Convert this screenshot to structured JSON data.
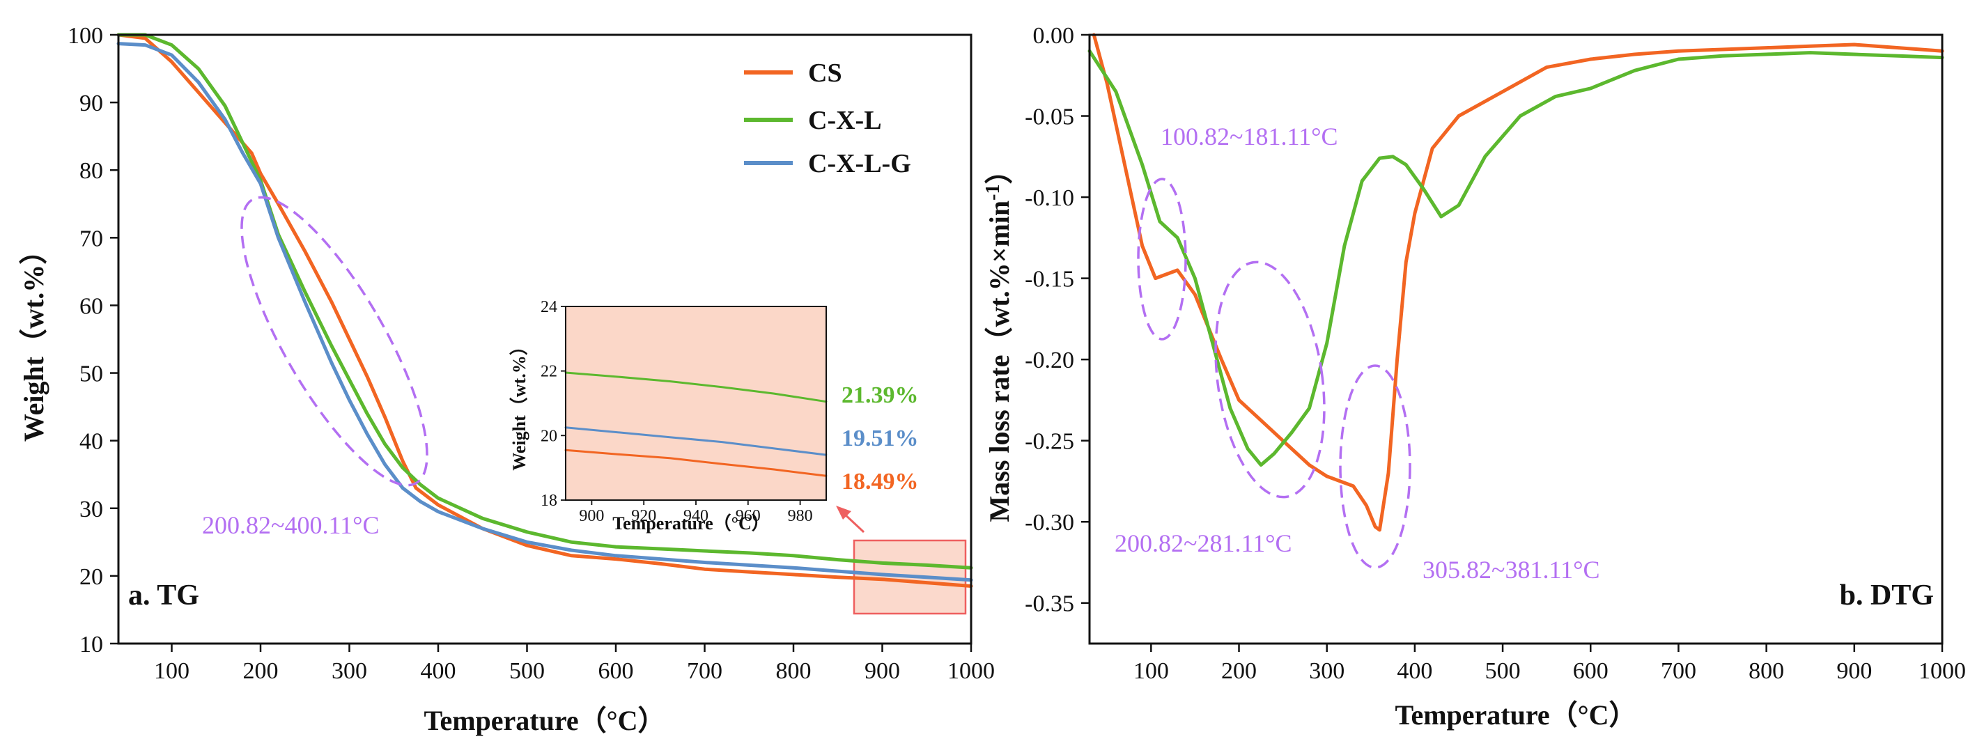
{
  "colors": {
    "CS": "#f26522",
    "C-X-L": "#5cb82e",
    "C-X-L-G": "#5b8ec9",
    "annotation": "#b36ff2",
    "highlight_fill": "#f9c9b6",
    "highlight_stroke": "#ee5f5f"
  },
  "chart_data": [
    {
      "type": "line",
      "panel_label": "a. TG",
      "xlabel": "Temperature（°C）",
      "ylabel": "Weight（wt.%）",
      "xlim": [
        40,
        1000
      ],
      "ylim": [
        10,
        100
      ],
      "xticks": [
        "100",
        "200",
        "300",
        "400",
        "500",
        "600",
        "700",
        "800",
        "900",
        "1000"
      ],
      "xtick_values": [
        100,
        200,
        300,
        400,
        500,
        600,
        700,
        800,
        900,
        1000
      ],
      "yticks": [
        "10",
        "20",
        "30",
        "40",
        "50",
        "60",
        "70",
        "80",
        "90",
        "100"
      ],
      "ytick_values": [
        10,
        20,
        30,
        40,
        50,
        60,
        70,
        80,
        90,
        100
      ],
      "legend": [
        "CS",
        "C-X-L",
        "C-X-L-G"
      ],
      "legend_position": "top-right",
      "series": [
        {
          "name": "CS",
          "x": [
            40,
            70,
            100,
            130,
            160,
            190,
            200,
            220,
            250,
            280,
            300,
            320,
            340,
            360,
            375,
            390,
            400,
            450,
            500,
            550,
            600,
            650,
            700,
            750,
            800,
            850,
            900,
            950,
            1000
          ],
          "y": [
            100,
            99.5,
            96,
            91.5,
            87,
            82.5,
            79.5,
            75,
            68,
            60.5,
            55,
            49.5,
            43.5,
            37,
            33,
            31.5,
            30.5,
            27,
            24.5,
            23,
            22.5,
            21.8,
            21,
            20.6,
            20.2,
            19.8,
            19.5,
            19.0,
            18.5
          ]
        },
        {
          "name": "C-X-L",
          "x": [
            40,
            70,
            100,
            130,
            160,
            180,
            200,
            220,
            250,
            280,
            300,
            320,
            340,
            360,
            380,
            400,
            450,
            500,
            550,
            600,
            650,
            700,
            750,
            800,
            850,
            900,
            950,
            1000
          ],
          "y": [
            100,
            100,
            98.5,
            95,
            89.5,
            84,
            78.5,
            70.5,
            62,
            54,
            49,
            44,
            39.5,
            36,
            33.5,
            31.5,
            28.5,
            26.5,
            25,
            24.3,
            24,
            23.7,
            23.4,
            23,
            22.4,
            21.9,
            21.6,
            21.2
          ]
        },
        {
          "name": "C-X-L-G",
          "x": [
            40,
            70,
            100,
            130,
            160,
            180,
            200,
            220,
            250,
            280,
            300,
            320,
            340,
            360,
            380,
            400,
            450,
            500,
            550,
            600,
            650,
            700,
            750,
            800,
            850,
            900,
            950,
            1000
          ],
          "y": [
            98.7,
            98.5,
            97,
            93,
            87.5,
            82.5,
            78,
            70,
            60.5,
            51.5,
            46,
            41,
            36.5,
            33,
            31,
            29.5,
            27,
            25,
            23.8,
            23,
            22.5,
            22,
            21.6,
            21.2,
            20.7,
            20.2,
            19.8,
            19.4
          ]
        }
      ],
      "annotations": [
        {
          "text": "200.82~400.11°C"
        }
      ],
      "inset": {
        "xlabel": "Temperature（°C）",
        "ylabel": "Weight（wt.%）",
        "xlim": [
          890,
          990
        ],
        "ylim": [
          18,
          24
        ],
        "xticks": [
          "900",
          "920",
          "940",
          "960",
          "980"
        ],
        "xtick_values": [
          900,
          920,
          940,
          960,
          980
        ],
        "yticks": [
          "18",
          "20",
          "22",
          "24"
        ],
        "ytick_values": [
          18,
          20,
          22,
          24
        ],
        "series": [
          {
            "name": "CS",
            "x": [
              890,
              910,
              930,
              950,
              970,
              990
            ],
            "y": [
              19.55,
              19.42,
              19.3,
              19.12,
              18.95,
              18.75
            ],
            "end_label": "18.49%"
          },
          {
            "name": "C-X-L",
            "x": [
              890,
              910,
              930,
              950,
              970,
              990
            ],
            "y": [
              21.95,
              21.82,
              21.68,
              21.5,
              21.3,
              21.05
            ],
            "end_label": "21.39%"
          },
          {
            "name": "C-X-L-G",
            "x": [
              890,
              910,
              930,
              950,
              970,
              990
            ],
            "y": [
              20.25,
              20.1,
              19.95,
              19.8,
              19.6,
              19.4
            ],
            "end_label": "19.51%"
          }
        ]
      }
    },
    {
      "type": "line",
      "panel_label": "b. DTG",
      "xlabel": "Temperature（°C）",
      "ylabel": "Mass loss rate（wt.%×min⁻¹）",
      "ylabel_main": "Mass loss rate（wt.%×min",
      "ylabel_sup": "-1",
      "ylabel_tail": "）",
      "xlim": [
        30,
        1000
      ],
      "ylim": [
        -0.375,
        0
      ],
      "xticks": [
        "100",
        "200",
        "300",
        "400",
        "500",
        "600",
        "700",
        "800",
        "900",
        "1000"
      ],
      "xtick_values": [
        100,
        200,
        300,
        400,
        500,
        600,
        700,
        800,
        900,
        1000
      ],
      "yticks": [
        "0.00",
        "-0.05",
        "-0.10",
        "-0.15",
        "-0.20",
        "-0.25",
        "-0.30",
        "-0.35"
      ],
      "ytick_values": [
        0,
        -0.05,
        -0.1,
        -0.15,
        -0.2,
        -0.25,
        -0.3,
        -0.35
      ],
      "series": [
        {
          "name": "CS",
          "x": [
            35,
            50,
            70,
            90,
            105,
            115,
            130,
            150,
            180,
            200,
            220,
            250,
            280,
            300,
            330,
            345,
            355,
            360,
            370,
            380,
            390,
            400,
            420,
            450,
            500,
            550,
            600,
            650,
            700,
            750,
            800,
            850,
            900,
            950,
            1000
          ],
          "y": [
            0,
            -0.03,
            -0.08,
            -0.13,
            -0.15,
            -0.148,
            -0.145,
            -0.16,
            -0.2,
            -0.225,
            -0.235,
            -0.25,
            -0.265,
            -0.272,
            -0.278,
            -0.29,
            -0.303,
            -0.305,
            -0.27,
            -0.2,
            -0.14,
            -0.11,
            -0.07,
            -0.05,
            -0.035,
            -0.02,
            -0.015,
            -0.012,
            -0.01,
            -0.009,
            -0.008,
            -0.007,
            -0.006,
            -0.008,
            -0.01
          ]
        },
        {
          "name": "C-X-L",
          "x": [
            30,
            60,
            90,
            110,
            130,
            150,
            170,
            190,
            210,
            225,
            240,
            260,
            280,
            300,
            320,
            340,
            360,
            375,
            390,
            410,
            430,
            450,
            480,
            520,
            560,
            600,
            650,
            700,
            750,
            800,
            850,
            900,
            950,
            1000
          ],
          "y": [
            -0.01,
            -0.035,
            -0.08,
            -0.115,
            -0.125,
            -0.15,
            -0.19,
            -0.23,
            -0.255,
            -0.265,
            -0.258,
            -0.245,
            -0.23,
            -0.19,
            -0.13,
            -0.09,
            -0.076,
            -0.075,
            -0.08,
            -0.095,
            -0.112,
            -0.105,
            -0.075,
            -0.05,
            -0.038,
            -0.033,
            -0.022,
            -0.015,
            -0.013,
            -0.012,
            -0.011,
            -0.012,
            -0.013,
            -0.014
          ]
        }
      ],
      "annotations": [
        {
          "text": "100.82~181.11°C"
        },
        {
          "text": "200.82~281.11°C"
        },
        {
          "text": "305.82~381.11°C"
        }
      ]
    }
  ]
}
